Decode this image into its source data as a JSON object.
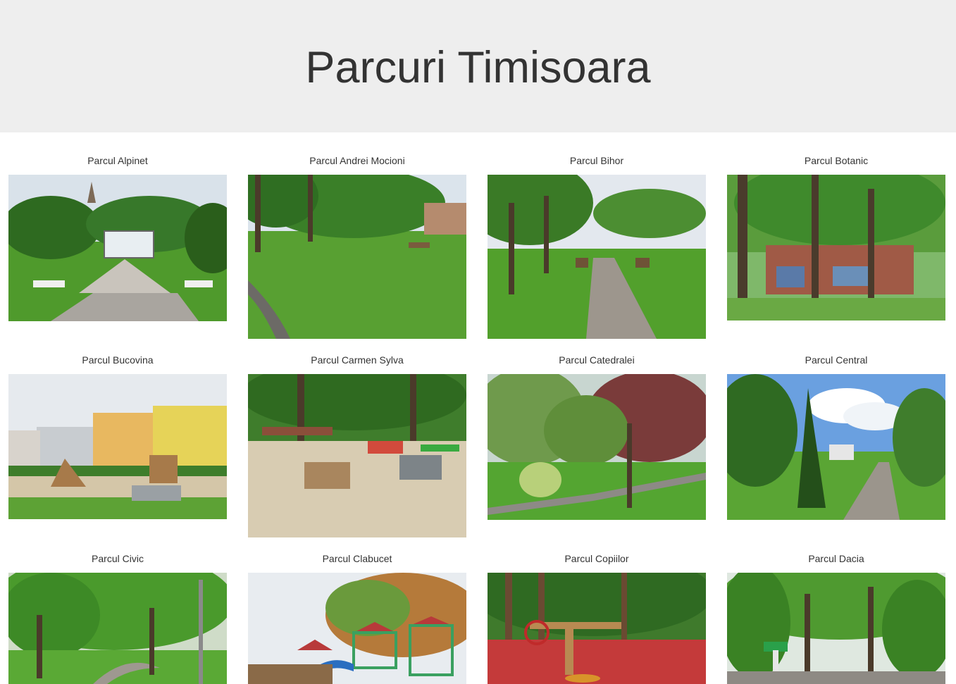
{
  "header": {
    "title": "Parcuri Timisoara"
  },
  "parks": [
    {
      "name": "Parcul Alpinet"
    },
    {
      "name": "Parcul Andrei Mocioni"
    },
    {
      "name": "Parcul Bihor"
    },
    {
      "name": "Parcul Botanic"
    },
    {
      "name": "Parcul Bucovina"
    },
    {
      "name": "Parcul Carmen Sylva"
    },
    {
      "name": "Parcul Catedralei"
    },
    {
      "name": "Parcul Central"
    },
    {
      "name": "Parcul Civic"
    },
    {
      "name": "Parcul Clabucet"
    },
    {
      "name": "Parcul Copiilor"
    },
    {
      "name": "Parcul Dacia"
    }
  ],
  "colors": {
    "header_bg": "#eeeeee",
    "text": "#333333",
    "grass": "#4e9a2a",
    "foliage": "#2f6b1e",
    "sky": "#dfe6ee",
    "path": "#9a9590"
  }
}
